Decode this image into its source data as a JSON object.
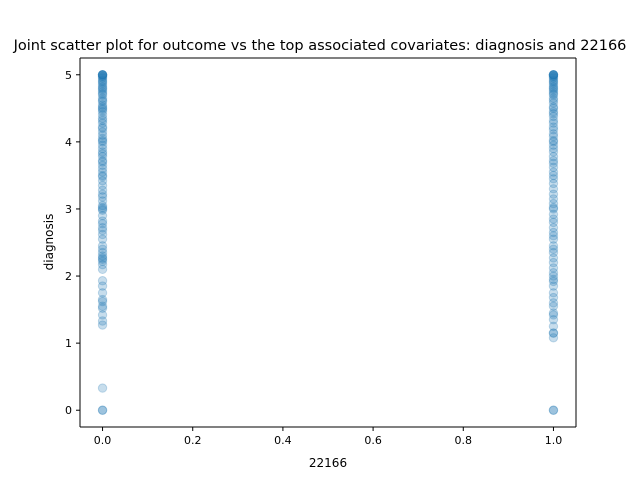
{
  "chart_data": {
    "type": "scatter",
    "title": "Joint scatter plot for outcome vs the top associated covariates: diagnosis and 22166",
    "xlabel": "22166",
    "ylabel": "diagnosis",
    "xlim": [
      -0.05,
      1.05
    ],
    "ylim": [
      -0.25,
      5.25
    ],
    "xticks": [
      0.0,
      0.2,
      0.4,
      0.6,
      0.8,
      1.0
    ],
    "xtick_labels": [
      "0.0",
      "0.2",
      "0.4",
      "0.6",
      "0.8",
      "1.0"
    ],
    "yticks": [
      0,
      1,
      2,
      3,
      4,
      5
    ],
    "ytick_labels": [
      "0",
      "1",
      "2",
      "3",
      "4",
      "5"
    ],
    "grid": false,
    "marker_color": "#1f77b4",
    "marker_alpha": 0.25,
    "series": [
      {
        "x_value": 0,
        "y": [
          0,
          0,
          0.33,
          1.27,
          1.33,
          1.42,
          1.52,
          1.55,
          1.62,
          1.65,
          1.75,
          1.85,
          1.93,
          2.1,
          2.17,
          2.22,
          2.25,
          2.27,
          2.3,
          2.35,
          2.4,
          2.45,
          2.55,
          2.62,
          2.68,
          2.72,
          2.78,
          2.82,
          2.9,
          2.98,
          3.0,
          3.02,
          3.05,
          3.12,
          3.18,
          3.22,
          3.28,
          3.35,
          3.42,
          3.48,
          3.5,
          3.55,
          3.6,
          3.65,
          3.7,
          3.72,
          3.78,
          3.82,
          3.85,
          3.9,
          3.95,
          4.0,
          4.02,
          4.05,
          4.1,
          4.15,
          4.2,
          4.22,
          4.28,
          4.32,
          4.35,
          4.4,
          4.45,
          4.48,
          4.5,
          4.52,
          4.55,
          4.6,
          4.62,
          4.65,
          4.7,
          4.72,
          4.75,
          4.78,
          4.8,
          4.82,
          4.85,
          4.88,
          4.9,
          4.92,
          4.95,
          4.97,
          4.98,
          5.0,
          5.0,
          5.0,
          5.0,
          5.0
        ]
      },
      {
        "x_value": 1,
        "y": [
          0,
          0,
          1.08,
          1.15,
          1.15,
          1.25,
          1.35,
          1.42,
          1.45,
          1.55,
          1.6,
          1.68,
          1.75,
          1.85,
          1.92,
          1.95,
          2.0,
          2.05,
          2.12,
          2.2,
          2.27,
          2.35,
          2.4,
          2.45,
          2.55,
          2.6,
          2.65,
          2.72,
          2.8,
          2.85,
          2.92,
          3.0,
          3.02,
          3.08,
          3.15,
          3.22,
          3.3,
          3.38,
          3.45,
          3.5,
          3.55,
          3.62,
          3.68,
          3.72,
          3.78,
          3.85,
          3.9,
          3.95,
          4.0,
          4.02,
          4.08,
          4.12,
          4.18,
          4.22,
          4.28,
          4.32,
          4.38,
          4.42,
          4.45,
          4.5,
          4.52,
          4.58,
          4.62,
          4.65,
          4.7,
          4.72,
          4.75,
          4.78,
          4.8,
          4.82,
          4.85,
          4.88,
          4.9,
          4.92,
          4.95,
          4.97,
          4.98,
          5.0,
          5.0,
          5.0,
          5.0,
          5.0
        ]
      }
    ]
  }
}
